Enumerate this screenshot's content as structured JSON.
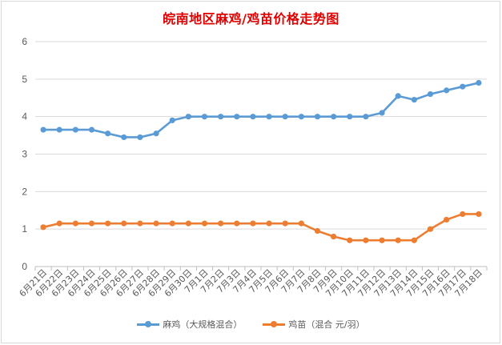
{
  "chart_data": {
    "type": "line",
    "title": "皖南地区麻鸡/鸡苗价格走势图",
    "xlabel": "",
    "ylabel": "",
    "ylim": [
      0,
      6
    ],
    "yticks": [
      "0",
      "1",
      "2",
      "3",
      "4",
      "5",
      "6"
    ],
    "grid": true,
    "legend": "bottom",
    "categories": [
      "6月21日",
      "6月22日",
      "6月23日",
      "6月24日",
      "6月25日",
      "6月26日",
      "6月27日",
      "6月28日",
      "6月29日",
      "6月30日",
      "7月1日",
      "7月2日",
      "7月3日",
      "7月4日",
      "7月5日",
      "7月6日",
      "7月7日",
      "7月8日",
      "7月9日",
      "7月10日",
      "7月11日",
      "7月12日",
      "7月13日",
      "7月14日",
      "7月15日",
      "7月16日",
      "7月17日",
      "7月18日"
    ],
    "series": [
      {
        "name": "麻鸡（大规格混合）",
        "color": "#5b9bd5",
        "values": [
          3.65,
          3.65,
          3.65,
          3.65,
          3.55,
          3.45,
          3.45,
          3.55,
          3.9,
          4.0,
          4.0,
          4.0,
          4.0,
          4.0,
          4.0,
          4.0,
          4.0,
          4.0,
          4.0,
          4.0,
          4.0,
          4.1,
          4.55,
          4.45,
          4.6,
          4.7,
          4.8,
          4.9
        ]
      },
      {
        "name": "鸡苗（混合 元/羽）",
        "color": "#ed7d31",
        "values": [
          1.05,
          1.15,
          1.15,
          1.15,
          1.15,
          1.15,
          1.15,
          1.15,
          1.15,
          1.15,
          1.15,
          1.15,
          1.15,
          1.15,
          1.15,
          1.15,
          1.15,
          0.95,
          0.8,
          0.7,
          0.7,
          0.7,
          0.7,
          0.7,
          1.0,
          1.25,
          1.4,
          1.4
        ]
      }
    ]
  }
}
